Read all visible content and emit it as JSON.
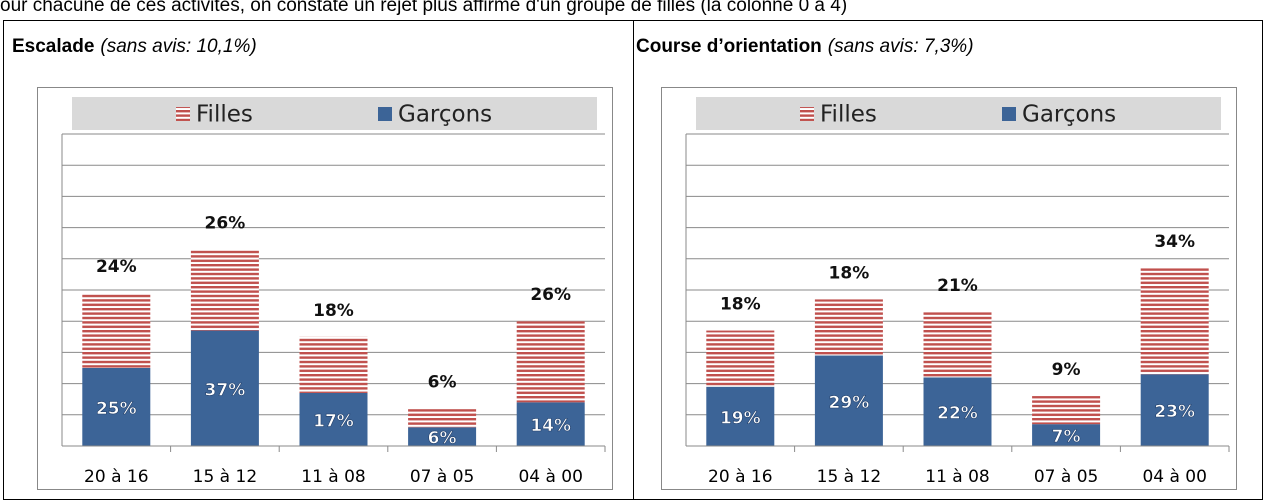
{
  "intro": "our chacune de ces activités, on constate un rejet plus affirmé  d'un groupe de filles (la colonne 0 à 4)",
  "chart_data": [
    {
      "type": "stacked-bar",
      "title": "Escalade",
      "subtitle": "(sans avis: 10,1%)",
      "categories": [
        "20 à 16",
        "15 à 12",
        "11 à 08",
        "07 à 05",
        "04 à 00"
      ],
      "series": [
        {
          "name": "Filles",
          "color": "#c0504d",
          "values": [
            24,
            26,
            18,
            6,
            26
          ],
          "value_labels": [
            "24%",
            "26%",
            "18%",
            "6%",
            "26%"
          ]
        },
        {
          "name": "Garçons",
          "color": "#3c6497",
          "values": [
            25,
            37,
            17,
            6,
            14
          ],
          "value_labels": [
            "25%",
            "37%",
            "17%",
            "6%",
            "14%"
          ]
        }
      ],
      "ylim": [
        0,
        100
      ],
      "yticks": [
        0,
        10,
        20,
        30,
        40,
        50,
        60,
        70,
        80,
        90,
        100
      ],
      "grid": true,
      "legend": "top"
    },
    {
      "type": "stacked-bar",
      "title": "Course d’orientation",
      "subtitle": "(sans avis: 7,3%)",
      "categories": [
        "20 à 16",
        "15 à 12",
        "11 à 08",
        "07 à 05",
        "04 à 00"
      ],
      "series": [
        {
          "name": "Filles",
          "color": "#c0504d",
          "values": [
            18,
            18,
            21,
            9,
            34
          ],
          "value_labels": [
            "18%",
            "18%",
            "21%",
            "9%",
            "34%"
          ]
        },
        {
          "name": "Garçons",
          "color": "#3c6497",
          "values": [
            19,
            29,
            22,
            7,
            23
          ],
          "value_labels": [
            "19%",
            "29%",
            "22%",
            "7%",
            "23%"
          ]
        }
      ],
      "ylim": [
        0,
        100
      ],
      "yticks": [
        0,
        10,
        20,
        30,
        40,
        50,
        60,
        70,
        80,
        90,
        100
      ],
      "grid": true,
      "legend": "top"
    }
  ]
}
